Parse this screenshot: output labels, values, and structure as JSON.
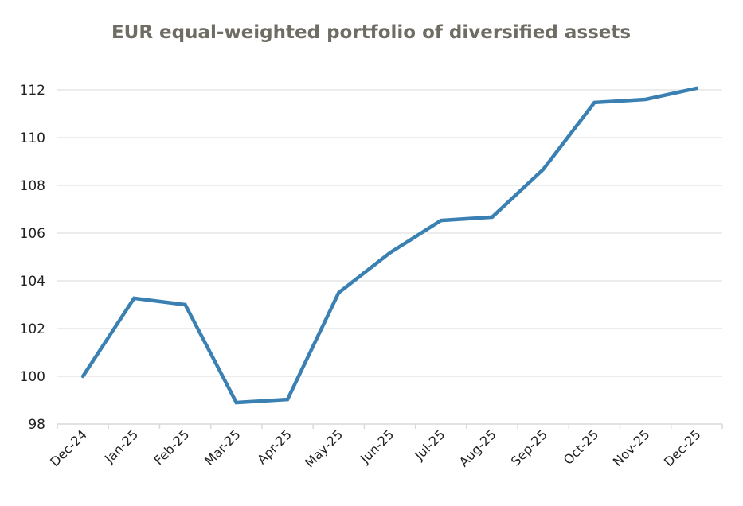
{
  "chart_data": {
    "type": "line",
    "title": "EUR equal-weighted portfolio of diversified assets",
    "xlabel": "",
    "ylabel": "",
    "categories": [
      "Dec-24",
      "Jan-25",
      "Feb-25",
      "Mar-25",
      "Apr-25",
      "May-25",
      "Jun-25",
      "Jul-25",
      "Aug-25",
      "Sep-25",
      "Oct-25",
      "Nov-25",
      "Dec-25"
    ],
    "series": [
      {
        "name": "EUR equal-weighted portfolio",
        "color": "#3a80b2",
        "values": [
          100.0,
          103.27,
          103.0,
          98.9,
          99.03,
          103.5,
          105.17,
          106.53,
          106.67,
          108.67,
          111.47,
          111.6,
          112.07
        ]
      }
    ],
    "ylim": [
      98,
      112
    ],
    "yticks": [
      98,
      100,
      102,
      104,
      106,
      108,
      110,
      112
    ],
    "grid": true,
    "legend": "none"
  }
}
